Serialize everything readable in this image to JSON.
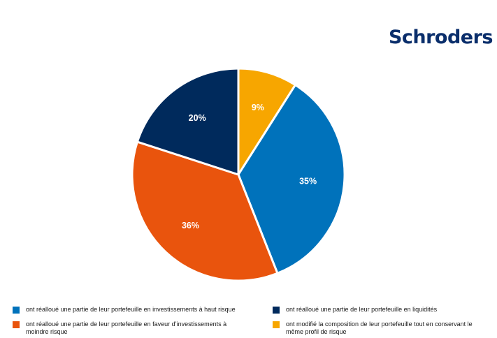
{
  "brand": {
    "logo_text": "Schroders"
  },
  "chart_data": {
    "type": "pie",
    "title": "",
    "slices": [
      {
        "label": "ont modifié la composition de leur portefeuille tout en conservant le même profil de risque",
        "value": 9,
        "display": "9%",
        "color": "#f7a600"
      },
      {
        "label": "ont réalloué une partie de leur portefeuille en investissements à haut risque",
        "value": 35,
        "display": "35%",
        "color": "#0072bb"
      },
      {
        "label": "ont réalloué une partie de leur portefeuille en faveur d’investissements à moindre risque",
        "value": 36,
        "display": "36%",
        "color": "#e9540d"
      },
      {
        "label": "ont réalloué une partie de leur portefeuille en liquidités",
        "value": 20,
        "display": "20%",
        "color": "#002a5c"
      }
    ],
    "start_angle_deg": 0,
    "direction": "clockwise",
    "legend_position": "bottom"
  },
  "legend": {
    "items": [
      {
        "text": "ont réalloué une partie de leur portefeuille en investissements à haut risque",
        "color": "#0072bb"
      },
      {
        "text": "ont réalloué une partie de leur portefeuille en liquidités",
        "color": "#002a5c"
      },
      {
        "text": "ont réalloué une partie de leur portefeuille en faveur d’investissements à moindre risque",
        "color": "#e9540d"
      },
      {
        "text": "ont modifié la composition de leur portefeuille tout en conservant le même profil de risque",
        "color": "#f7a600"
      }
    ]
  }
}
